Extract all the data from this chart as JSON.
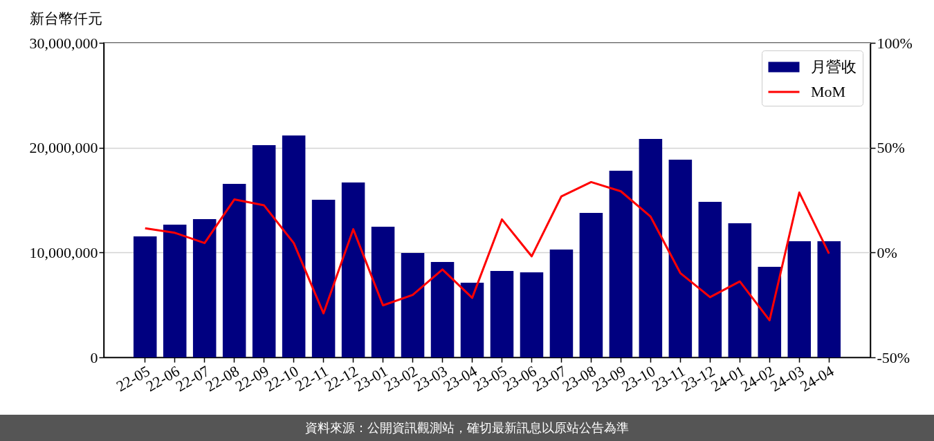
{
  "chart_data": {
    "type": "bar",
    "ylabel": "新台幣仟元",
    "categories": [
      "22-05",
      "22-06",
      "22-07",
      "22-08",
      "22-09",
      "22-10",
      "22-11",
      "22-12",
      "23-01",
      "23-02",
      "23-03",
      "23-04",
      "23-05",
      "23-06",
      "23-07",
      "23-08",
      "23-09",
      "23-10",
      "23-11",
      "23-12",
      "24-01",
      "24-02",
      "24-03",
      "24-04"
    ],
    "series": [
      {
        "name": "月營收",
        "type": "bar",
        "color": "#000080",
        "values": [
          11540000,
          12660000,
          13190000,
          16550000,
          20240000,
          21160000,
          15030000,
          16680000,
          12460000,
          9960000,
          9100000,
          7120000,
          8240000,
          8110000,
          10290000,
          13780000,
          17800000,
          20840000,
          18860000,
          14840000,
          12790000,
          8640000,
          11080000,
          11080000
        ]
      },
      {
        "name": "MoM",
        "type": "line",
        "axis": "y2",
        "color": "#ff0000",
        "values": [
          11.6,
          9.4,
          4.5,
          25.3,
          22.5,
          4.5,
          -29.0,
          11.1,
          -25.2,
          -20.2,
          -8.1,
          -21.6,
          15.8,
          -1.8,
          26.8,
          33.6,
          29.2,
          17.1,
          -9.8,
          -21.3,
          -13.8,
          -32.3,
          28.6,
          -0.5
        ]
      }
    ],
    "ylim": [
      0,
      30000000
    ],
    "yticks": [
      0,
      {
        "value": 10000000,
        "label": "10,000,000"
      },
      {
        "value": 20000000,
        "label": "20,000,000"
      },
      {
        "value": 30000000,
        "label": "30,000,000"
      }
    ],
    "y2lim": [
      -50,
      100
    ],
    "y2ticks": [
      {
        "value": -50,
        "label": "-50%"
      },
      {
        "value": 0,
        "label": "0%"
      },
      {
        "value": 50,
        "label": "50%"
      },
      {
        "value": 100,
        "label": "100%"
      }
    ],
    "grid": "y",
    "legend": "top right",
    "annotations": [
      "資料來源：公開資訊觀測站，確切最新訊息以原站公告為準"
    ]
  }
}
